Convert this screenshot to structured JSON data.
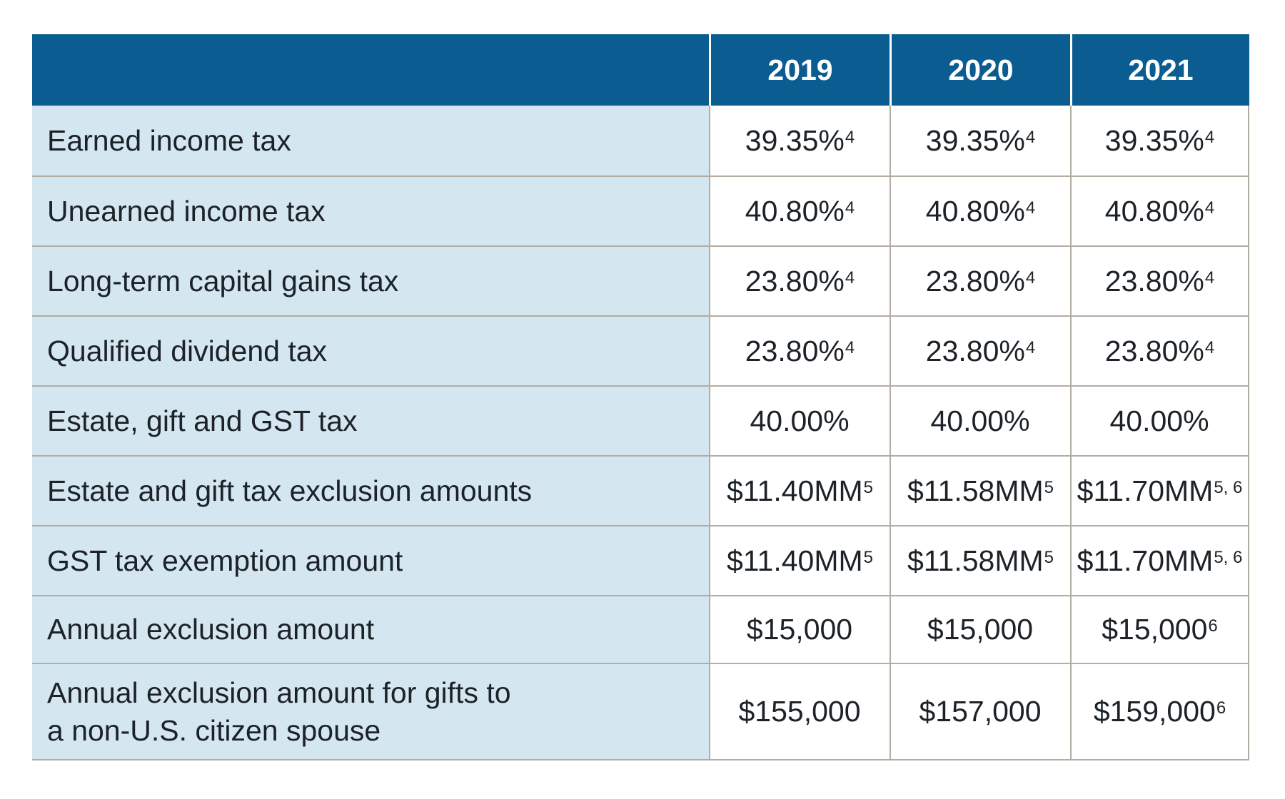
{
  "colors": {
    "header_bg": "#0b5c91",
    "header_text": "#ffffff",
    "label_bg": "#d4e7f1",
    "cell_bg": "#ffffff",
    "border": "#b3aca3",
    "text": "#1c2227",
    "page_bg": "#ffffff"
  },
  "table": {
    "columns": [
      "",
      "2019",
      "2020",
      "2021"
    ],
    "rows": [
      {
        "label": "Earned income tax",
        "values": [
          {
            "main": "39.35%",
            "sup": "4"
          },
          {
            "main": "39.35%",
            "sup": "4"
          },
          {
            "main": "39.35%",
            "sup": "4"
          }
        ]
      },
      {
        "label": "Unearned income tax",
        "values": [
          {
            "main": "40.80%",
            "sup": "4"
          },
          {
            "main": "40.80%",
            "sup": "4"
          },
          {
            "main": "40.80%",
            "sup": "4"
          }
        ]
      },
      {
        "label": "Long-term capital gains tax",
        "values": [
          {
            "main": "23.80%",
            "sup": "4"
          },
          {
            "main": "23.80%",
            "sup": "4"
          },
          {
            "main": "23.80%",
            "sup": "4"
          }
        ]
      },
      {
        "label": "Qualified dividend tax",
        "values": [
          {
            "main": "23.80%",
            "sup": "4"
          },
          {
            "main": "23.80%",
            "sup": "4"
          },
          {
            "main": "23.80%",
            "sup": "4"
          }
        ]
      },
      {
        "label": "Estate, gift and GST tax",
        "values": [
          {
            "main": "40.00%",
            "sup": ""
          },
          {
            "main": "40.00%",
            "sup": ""
          },
          {
            "main": "40.00%",
            "sup": ""
          }
        ]
      },
      {
        "label": "Estate and gift tax exclusion amounts",
        "values": [
          {
            "main": "$11.40MM",
            "sup": "5"
          },
          {
            "main": "$11.58MM",
            "sup": "5"
          },
          {
            "main": "$11.70MM",
            "sup": "5, 6"
          }
        ]
      },
      {
        "label": "GST tax exemption amount",
        "values": [
          {
            "main": "$11.40MM",
            "sup": "5"
          },
          {
            "main": "$11.58MM",
            "sup": "5"
          },
          {
            "main": "$11.70MM",
            "sup": "5, 6"
          }
        ]
      },
      {
        "label": "Annual exclusion amount",
        "values": [
          {
            "main": "$15,000",
            "sup": ""
          },
          {
            "main": "$15,000",
            "sup": ""
          },
          {
            "main": "$15,000",
            "sup": "6"
          }
        ]
      },
      {
        "label": "Annual exclusion amount for gifts to\na non-U.S. citizen spouse",
        "values": [
          {
            "main": "$155,000",
            "sup": ""
          },
          {
            "main": "$157,000",
            "sup": ""
          },
          {
            "main": "$159,000",
            "sup": "6"
          }
        ]
      }
    ]
  }
}
